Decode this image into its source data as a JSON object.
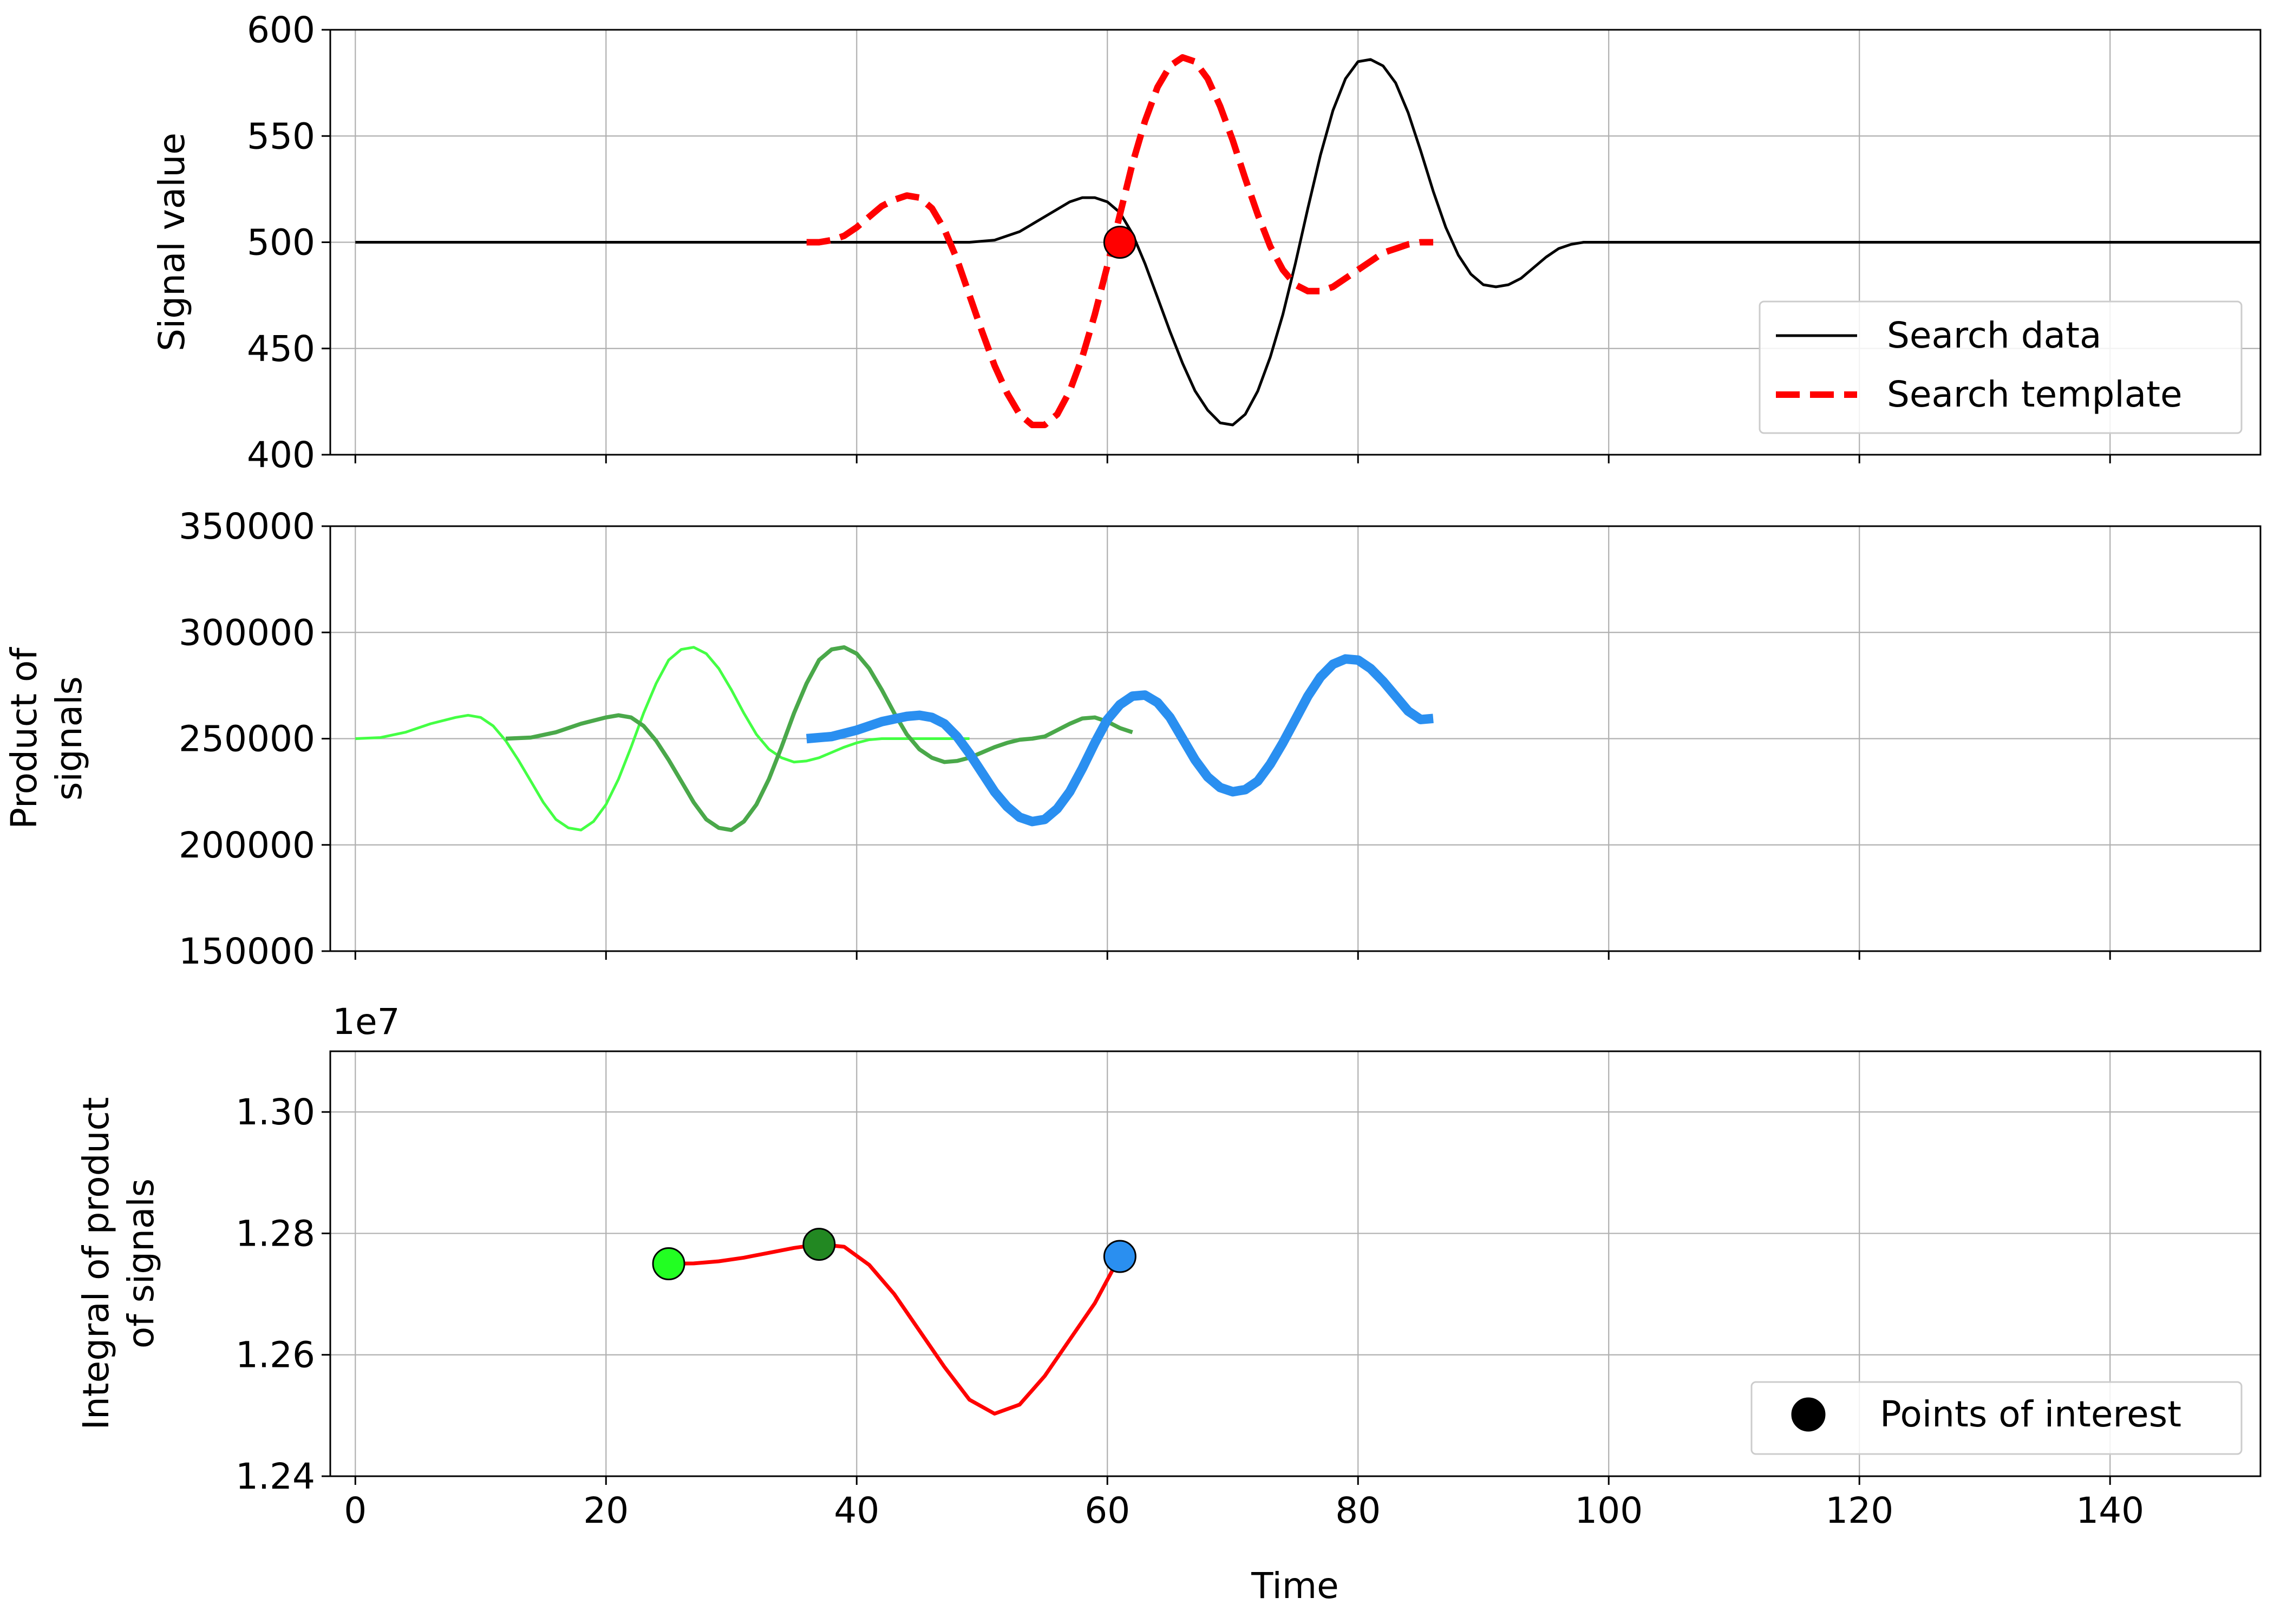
{
  "chart_data": [
    {
      "type": "line",
      "ylabel": "Signal value",
      "xlim": [
        -2,
        152
      ],
      "ylim": [
        400,
        600
      ],
      "yticks": [
        400,
        450,
        500,
        550,
        600
      ],
      "grid": true,
      "legend_position": "lower-right",
      "series": [
        {
          "name": "Search data",
          "color": "#000000",
          "style": "solid",
          "x": [
            0,
            5,
            10,
            15,
            20,
            25,
            30,
            35,
            40,
            45,
            49,
            51,
            53,
            55,
            57,
            58,
            59,
            60,
            61,
            62,
            63,
            64,
            65,
            66,
            67,
            68,
            69,
            70,
            71,
            72,
            73,
            74,
            75,
            76,
            77,
            78,
            79,
            80,
            81,
            82,
            83,
            84,
            85,
            86,
            87,
            88,
            89,
            90,
            91,
            92,
            93,
            94,
            95,
            96,
            97,
            98,
            99,
            100,
            110,
            120,
            130,
            140,
            152
          ],
          "y": [
            500,
            500,
            500,
            500,
            500,
            500,
            500,
            500,
            500,
            500,
            500,
            501,
            505,
            512,
            519,
            521,
            521,
            519,
            514,
            504,
            490,
            474,
            458,
            443,
            430,
            421,
            415,
            414,
            419,
            430,
            446,
            466,
            490,
            516,
            541,
            562,
            577,
            585,
            586,
            583,
            575,
            561,
            543,
            524,
            507,
            494,
            485,
            480,
            479,
            480,
            483,
            488,
            493,
            497,
            499,
            500,
            500,
            500,
            500,
            500,
            500,
            500,
            500
          ]
        },
        {
          "name": "Search template",
          "color": "#ff0000",
          "style": "dashed",
          "x": [
            36,
            37,
            38,
            39,
            40,
            41,
            42,
            43,
            44,
            45,
            46,
            47,
            48,
            49,
            50,
            51,
            52,
            53,
            54,
            55,
            56,
            57,
            58,
            59,
            60,
            61,
            62,
            63,
            64,
            65,
            66,
            67,
            68,
            69,
            70,
            71,
            72,
            73,
            74,
            75,
            76,
            77,
            78,
            79,
            80,
            81,
            82,
            83,
            84,
            85,
            86
          ],
          "y": [
            500,
            500,
            501,
            503,
            507,
            512,
            517,
            520,
            522,
            521,
            516,
            506,
            492,
            475,
            458,
            442,
            429,
            419,
            414,
            414,
            419,
            430,
            446,
            466,
            489,
            513,
            537,
            557,
            573,
            583,
            587,
            585,
            577,
            564,
            548,
            530,
            513,
            498,
            487,
            480,
            477,
            477,
            479,
            483,
            487,
            491,
            495,
            497,
            499,
            500,
            500
          ]
        }
      ],
      "points": [
        {
          "x": 61,
          "y": 500,
          "color": "#ff0000"
        }
      ]
    },
    {
      "type": "line",
      "ylabel": "Product of signals",
      "xlim": [
        -2,
        152
      ],
      "ylim": [
        150000,
        350000
      ],
      "yticks": [
        150000,
        200000,
        250000,
        300000,
        350000
      ],
      "grid": true,
      "series": [
        {
          "color": "#44ff44",
          "width": 1,
          "x": [
            0,
            2,
            4,
            6,
            8,
            9,
            10,
            11,
            12,
            13,
            14,
            15,
            16,
            17,
            18,
            19,
            20,
            21,
            22,
            23,
            24,
            25,
            26,
            27,
            28,
            29,
            30,
            31,
            32,
            33,
            34,
            35,
            36,
            37,
            38,
            39,
            40,
            41,
            42,
            43,
            44,
            45,
            46,
            47,
            48,
            49
          ],
          "y": [
            250000,
            250500,
            253000,
            257000,
            260000,
            261000,
            260000,
            256000,
            249000,
            240000,
            230000,
            220000,
            212000,
            208000,
            207000,
            211000,
            219000,
            231000,
            246000,
            262000,
            276000,
            287000,
            292000,
            293000,
            290000,
            283000,
            273000,
            262000,
            252000,
            245000,
            241000,
            239000,
            239500,
            241000,
            243500,
            246000,
            248000,
            249500,
            250000,
            250000,
            250000,
            250000,
            250000,
            250000,
            250000,
            250000
          ]
        },
        {
          "color": "#4aa84a",
          "width": 1.5,
          "x": [
            12,
            14,
            16,
            18,
            20,
            21,
            22,
            23,
            24,
            25,
            26,
            27,
            28,
            29,
            30,
            31,
            32,
            33,
            34,
            35,
            36,
            37,
            38,
            39,
            40,
            41,
            42,
            43,
            44,
            45,
            46,
            47,
            48,
            49,
            50,
            51,
            52,
            53,
            54,
            55,
            56,
            57,
            58,
            59,
            60,
            61,
            62
          ],
          "y": [
            250000,
            250500,
            253000,
            257000,
            260000,
            261000,
            260000,
            256000,
            249000,
            240000,
            230000,
            220000,
            212000,
            208000,
            207000,
            211000,
            219000,
            231000,
            246000,
            262000,
            276000,
            287000,
            292000,
            293000,
            290000,
            283000,
            273000,
            262000,
            252000,
            245000,
            241000,
            239000,
            239500,
            241000,
            243500,
            246000,
            248000,
            249500,
            250000,
            251000,
            254000,
            257000,
            259500,
            260000,
            258000,
            255000,
            253000
          ]
        },
        {
          "color": "#2a8ff0",
          "width": 3.5,
          "x": [
            36,
            38,
            40,
            42,
            44,
            45,
            46,
            47,
            48,
            49,
            50,
            51,
            52,
            53,
            54,
            55,
            56,
            57,
            58,
            59,
            60,
            61,
            62,
            63,
            64,
            65,
            66,
            67,
            68,
            69,
            70,
            71,
            72,
            73,
            74,
            75,
            76,
            77,
            78,
            79,
            80,
            81,
            82,
            83,
            84,
            85,
            86
          ],
          "y": [
            250000,
            251000,
            254000,
            258000,
            260500,
            261000,
            260000,
            257000,
            251000,
            243000,
            234000,
            225000,
            218000,
            213000,
            211000,
            212000,
            217000,
            225000,
            236000,
            248000,
            259000,
            266000,
            270000,
            270500,
            267000,
            260000,
            250000,
            240000,
            232000,
            227000,
            225000,
            226000,
            230000,
            238000,
            248000,
            259000,
            270000,
            279000,
            285000,
            287500,
            287000,
            283000,
            277000,
            270000,
            263000,
            259000,
            259500
          ]
        }
      ]
    },
    {
      "type": "line",
      "ylabel": "Integral of product of signals",
      "xlabel": "Time",
      "xlim": [
        -2,
        152
      ],
      "ylim": [
        12400000,
        13100000
      ],
      "yticks": [
        12400000,
        12600000,
        12800000,
        13000000
      ],
      "ytick_labels": [
        "1.24",
        "1.26",
        "1.28",
        "1.30"
      ],
      "offset_label": "1e7",
      "xticks": [
        0,
        20,
        40,
        60,
        80,
        100,
        120,
        140
      ],
      "grid": true,
      "legend_position": "lower-right",
      "series": [
        {
          "color": "#ff0000",
          "x": [
            25,
            27,
            29,
            31,
            33,
            35,
            37,
            39,
            41,
            43,
            45,
            47,
            49,
            51,
            53,
            55,
            57,
            59,
            61
          ],
          "y": [
            12750000,
            12750500,
            12754000,
            12760000,
            12768000,
            12776000,
            12782000,
            12778000,
            12748000,
            12700000,
            12640000,
            12580000,
            12526000,
            12503000,
            12518000,
            12565000,
            12625000,
            12685000,
            12762000
          ]
        }
      ],
      "points": [
        {
          "x": 25,
          "y": 12750000,
          "color": "#22ff22"
        },
        {
          "x": 37,
          "y": 12782000,
          "color": "#228822"
        },
        {
          "x": 61,
          "y": 12762000,
          "color": "#2a8ff0"
        }
      ],
      "legend": [
        {
          "name": "Points of interest",
          "color": "#000000",
          "marker": "circle"
        }
      ]
    }
  ]
}
